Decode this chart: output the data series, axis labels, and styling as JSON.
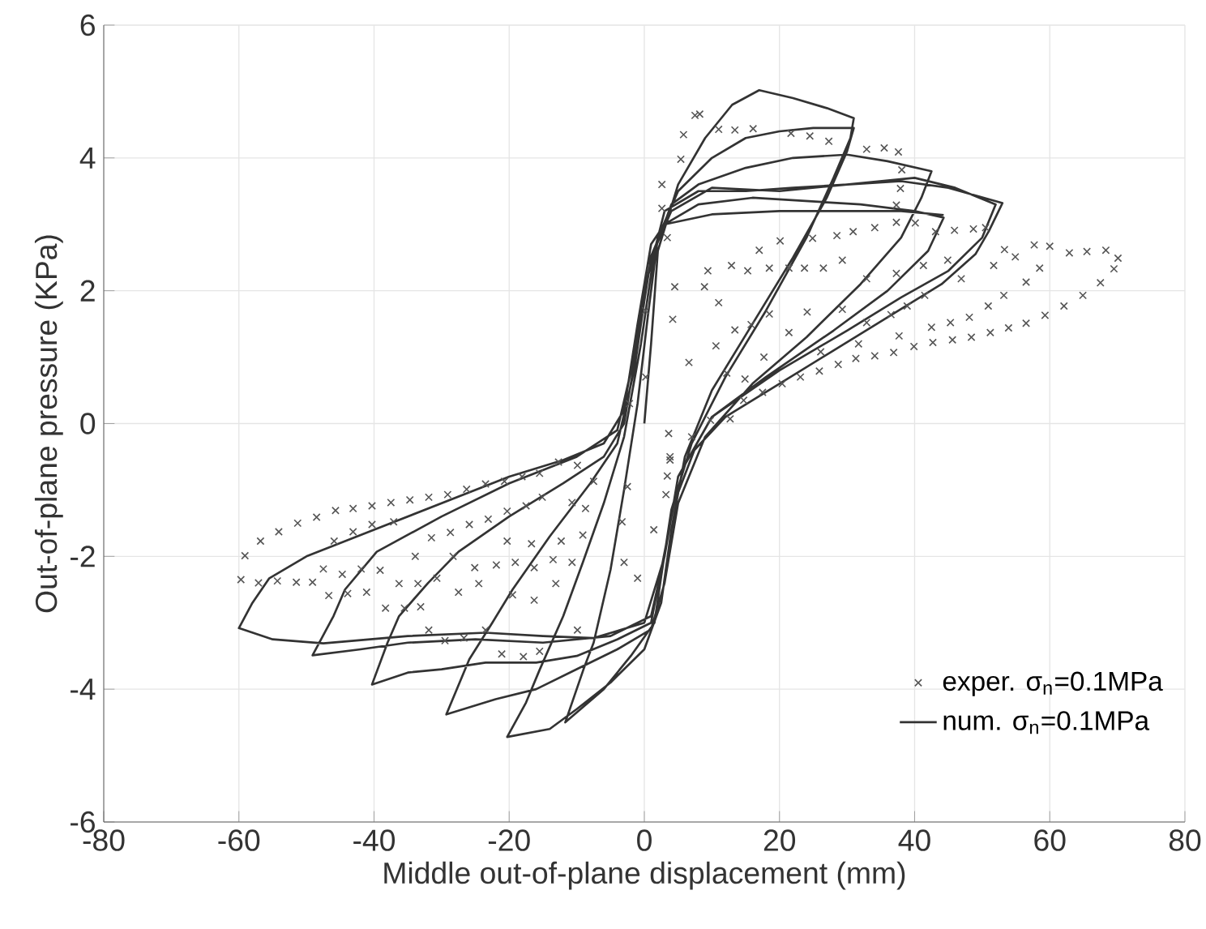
{
  "chart_data": {
    "type": "scatter",
    "xlabel": "Middle out-of-plane displacement (mm)",
    "ylabel": "Out-of-plane pressure (KPa)",
    "xlim": [
      -80,
      80
    ],
    "ylim": [
      -6,
      6
    ],
    "xticks": [
      -80,
      -60,
      -40,
      -20,
      0,
      20,
      40,
      60,
      80
    ],
    "yticks": [
      -6,
      -4,
      -2,
      0,
      2,
      4,
      6
    ],
    "grid": true,
    "legend": "bottom right",
    "series": [
      {
        "name": "exper. σ$_{n}$=0.1MPa",
        "marker": "cross",
        "color": "#555555",
        "x": [
          8.2,
          5.8,
          5.4,
          2.6,
          2.6,
          11.0,
          13.4,
          16.1,
          21.7,
          24.5,
          27.3,
          32.9,
          35.5,
          37.6,
          38.1,
          37.9,
          37.3,
          37.3,
          40.1,
          43.1,
          45.9,
          48.7,
          50.5,
          53.3,
          54.9,
          57.7,
          60.0,
          62.9,
          65.5,
          68.3,
          70.1,
          69.5,
          67.5,
          64.9,
          62.1,
          59.3,
          56.5,
          53.9,
          51.2,
          48.4,
          45.6,
          42.7,
          39.9,
          36.9,
          34.1,
          31.3,
          28.7,
          25.9,
          23.1,
          20.4,
          17.5,
          14.7,
          12.7,
          9.8,
          7.0,
          17.0,
          20.1,
          24.9,
          28.5,
          30.9,
          34.1,
          12.9,
          15.3,
          18.5,
          21.4,
          23.7,
          26.5,
          29.3,
          32.9,
          37.3,
          41.3,
          44.9,
          46.9,
          51.7,
          56.5,
          58.5,
          53.2,
          41.5,
          38.9,
          36.5,
          32.9,
          29.3,
          24.1,
          21.4,
          18.5,
          15.8,
          13.4,
          11.0,
          8.9,
          9.4,
          10.6,
          12.2,
          14.9,
          17.7,
          26.1,
          31.7,
          37.7,
          42.5,
          45.3,
          48.1,
          50.9,
          6.6,
          4.2,
          4.5,
          3.4,
          0.2,
          0.2,
          -2.2,
          3.6,
          3.8,
          3.8,
          3.4,
          3.2,
          1.4,
          -1.0,
          -3.0,
          -3.3,
          -2.5,
          -59.1,
          -56.8,
          -54.1,
          -51.3,
          -48.5,
          -45.7,
          -43.1,
          -40.3,
          -37.5,
          -34.7,
          -31.9,
          -29.1,
          -26.3,
          -23.5,
          -20.7,
          -18.1,
          -15.5,
          -12.7,
          -59.7,
          -57.1,
          -54.3,
          -51.5,
          -49.1,
          -46.7,
          -43.9,
          -41.1,
          -38.3,
          -35.5,
          -33.1,
          -31.9,
          -29.5,
          -26.7,
          -23.5,
          -21.1,
          -17.9,
          -15.5,
          -9.9,
          -47.5,
          -44.7,
          -41.9,
          -39.1,
          -36.3,
          -33.5,
          -30.7,
          -27.5,
          -24.5,
          -45.9,
          -43.1,
          -40.3,
          -37.1,
          -31.5,
          -28.7,
          -25.9,
          -23.1,
          -20.3,
          -17.5,
          -15.1,
          -33.9,
          -28.3,
          -25.1,
          -21.9,
          -19.1,
          -16.3,
          -13.5,
          -19.5,
          -16.3,
          -13.1,
          -10.7,
          -12.3,
          -9.1,
          -20.3,
          -16.7,
          -10.7,
          -8.7,
          -7.5,
          -9.9,
          7.5
        ],
        "values": [
          4.66,
          4.35,
          3.98,
          3.6,
          3.24,
          4.43,
          4.42,
          4.44,
          4.37,
          4.33,
          4.25,
          4.13,
          4.15,
          4.09,
          3.82,
          3.54,
          3.29,
          3.03,
          3.02,
          2.89,
          2.91,
          2.93,
          2.95,
          2.62,
          2.51,
          2.69,
          2.67,
          2.57,
          2.59,
          2.61,
          2.49,
          2.33,
          2.12,
          1.93,
          1.77,
          1.63,
          1.51,
          1.44,
          1.37,
          1.3,
          1.26,
          1.22,
          1.16,
          1.07,
          1.02,
          0.98,
          0.89,
          0.79,
          0.7,
          0.6,
          0.47,
          0.35,
          0.07,
          0.05,
          -0.2,
          2.61,
          2.75,
          2.79,
          2.83,
          2.89,
          2.95,
          2.38,
          2.3,
          2.34,
          2.34,
          2.34,
          2.34,
          2.46,
          2.18,
          2.26,
          2.38,
          2.46,
          2.18,
          2.38,
          2.13,
          2.34,
          1.93,
          1.93,
          1.77,
          1.64,
          1.52,
          1.72,
          1.68,
          1.37,
          1.65,
          1.49,
          1.41,
          1.82,
          2.06,
          2.3,
          1.17,
          0.76,
          0.67,
          1.0,
          1.08,
          1.2,
          1.32,
          1.45,
          1.52,
          1.6,
          1.77,
          0.92,
          1.57,
          2.06,
          2.8,
          1.7,
          0.7,
          0.3,
          -0.15,
          -0.55,
          -0.5,
          -0.79,
          -1.07,
          -1.6,
          -2.33,
          -2.09,
          -1.48,
          -0.95,
          -1.99,
          -1.77,
          -1.63,
          -1.5,
          -1.41,
          -1.31,
          -1.28,
          -1.24,
          -1.19,
          -1.15,
          -1.11,
          -1.07,
          -0.99,
          -0.91,
          -0.87,
          -0.8,
          -0.75,
          -0.58,
          -2.35,
          -2.4,
          -2.37,
          -2.39,
          -2.39,
          -2.59,
          -2.56,
          -2.54,
          -2.78,
          -2.78,
          -2.76,
          -3.11,
          -3.27,
          -3.23,
          -3.11,
          -3.47,
          -3.51,
          -3.43,
          -3.11,
          -2.19,
          -2.27,
          -2.19,
          -2.21,
          -2.41,
          -2.41,
          -2.33,
          -2.54,
          -2.41,
          -1.77,
          -1.63,
          -1.52,
          -1.48,
          -1.72,
          -1.64,
          -1.52,
          -1.44,
          -1.32,
          -1.24,
          -1.11,
          -2.0,
          -2.0,
          -2.17,
          -2.13,
          -2.09,
          -2.17,
          -2.05,
          -2.58,
          -2.66,
          -2.41,
          -2.09,
          -1.77,
          -1.68,
          -1.77,
          -1.81,
          -1.19,
          -1.28,
          -0.87,
          -0.63,
          4.64
        ]
      },
      {
        "name": "num. σ$_{n}$=0.1MPa",
        "type": "line",
        "marker": "none",
        "color": "#333333",
        "x": [
          0,
          1,
          2,
          5,
          9,
          13,
          17,
          22,
          27,
          31,
          30.5,
          28,
          24,
          18,
          12,
          7,
          4,
          2.5,
          1.5,
          -2,
          -6,
          -11.7,
          -9,
          -7.5,
          -5,
          -3,
          -1,
          0.5,
          2,
          5,
          10,
          15,
          20,
          25,
          31,
          30,
          27,
          22,
          16,
          10,
          6,
          4,
          2.5,
          0,
          -5,
          -10,
          -14,
          -20.3,
          -17.5,
          -15.5,
          -12,
          -9.1,
          -6,
          -3,
          -0.5,
          1.5,
          4,
          8,
          15,
          22,
          30,
          36,
          42.5,
          41,
          38,
          32,
          24,
          16,
          9,
          5,
          3,
          1,
          -4,
          -10,
          -16,
          -22,
          -29.3,
          -25.9,
          -22.5,
          -19.5,
          -14,
          -8,
          -4,
          -1.5,
          0.5,
          3,
          8,
          15,
          22,
          30,
          38,
          45,
          53,
          51,
          49,
          44,
          36,
          28,
          20,
          12,
          7.4,
          4.4,
          2.5,
          1,
          -4,
          -10,
          -16,
          -23.5,
          -30,
          -35,
          -40.3,
          -38,
          -36.3,
          -32,
          -27.5,
          -20,
          -12,
          -6,
          -3,
          -1,
          1,
          4,
          10,
          20,
          30,
          40,
          46,
          52,
          50,
          45,
          38,
          30,
          20,
          10,
          5,
          3,
          1,
          -5,
          -15,
          -25,
          -35,
          -42,
          -49.1,
          -46,
          -44.3,
          -39.6,
          -30,
          -20,
          -10,
          -4,
          -1.5,
          0.5,
          3,
          8,
          16,
          32,
          40,
          44.3,
          42,
          36,
          28,
          18,
          10,
          5,
          3,
          0,
          -7.5,
          -15,
          -23.5,
          -35,
          -47.5,
          -55,
          -60,
          -58,
          -55.5,
          -50,
          -40,
          -20,
          -12,
          -6,
          -3,
          -1,
          1,
          3,
          10,
          20,
          38,
          44.3
        ],
        "values": [
          0,
          1.2,
          2.6,
          3.6,
          4.3,
          4.8,
          5.02,
          4.9,
          4.75,
          4.6,
          4.3,
          3.7,
          2.8,
          1.7,
          0.7,
          -0.3,
          -1.3,
          -2.3,
          -3.0,
          -3.5,
          -4.0,
          -4.5,
          -3.7,
          -3.3,
          -2.2,
          -1.0,
          0.3,
          1.6,
          2.8,
          3.5,
          4.0,
          4.3,
          4.4,
          4.45,
          4.45,
          4.1,
          3.4,
          2.5,
          1.5,
          0.5,
          -0.5,
          -1.6,
          -2.7,
          -3.4,
          -3.9,
          -4.3,
          -4.6,
          -4.72,
          -4.2,
          -3.71,
          -2.9,
          -2.09,
          -1.2,
          -0.2,
          1.2,
          2.6,
          3.3,
          3.6,
          3.85,
          4.0,
          4.05,
          3.95,
          3.8,
          3.4,
          2.8,
          2.1,
          1.3,
          0.6,
          -0.2,
          -1.2,
          -2.4,
          -3.1,
          -3.4,
          -3.7,
          -4.0,
          -4.15,
          -4.38,
          -3.55,
          -3.0,
          -2.5,
          -1.7,
          -0.9,
          -0.3,
          0.8,
          2.2,
          3.2,
          3.5,
          3.5,
          3.55,
          3.6,
          3.65,
          3.55,
          3.32,
          2.9,
          2.55,
          2.1,
          1.6,
          1.1,
          0.6,
          0.1,
          -0.4,
          -1.2,
          -2.2,
          -3.0,
          -3.25,
          -3.5,
          -3.6,
          -3.6,
          -3.7,
          -3.75,
          -3.93,
          -3.3,
          -2.9,
          -2.4,
          -1.93,
          -1.4,
          -0.9,
          -0.5,
          0,
          1.2,
          2.5,
          3.2,
          3.55,
          3.5,
          3.6,
          3.7,
          3.55,
          3.3,
          2.8,
          2.3,
          1.9,
          1.4,
          0.8,
          0.1,
          -0.8,
          -2.0,
          -2.9,
          -3.2,
          -3.3,
          -3.25,
          -3.3,
          -3.4,
          -3.49,
          -2.9,
          -2.5,
          -1.93,
          -1.4,
          -0.9,
          -0.5,
          -0.1,
          1.0,
          2.4,
          3.0,
          3.3,
          3.4,
          3.3,
          3.2,
          3.1,
          2.6,
          2.0,
          1.4,
          0.7,
          0.1,
          -0.8,
          -2.0,
          -3.0,
          -3.23,
          -3.2,
          -3.15,
          -3.2,
          -3.31,
          -3.25,
          -3.08,
          -2.7,
          -2.33,
          -2.0,
          -1.6,
          -0.8,
          -0.55,
          -0.3,
          0.2,
          1.5,
          2.7,
          3.0,
          3.15,
          3.2,
          3.2,
          3.14
        ]
      }
    ]
  }
}
